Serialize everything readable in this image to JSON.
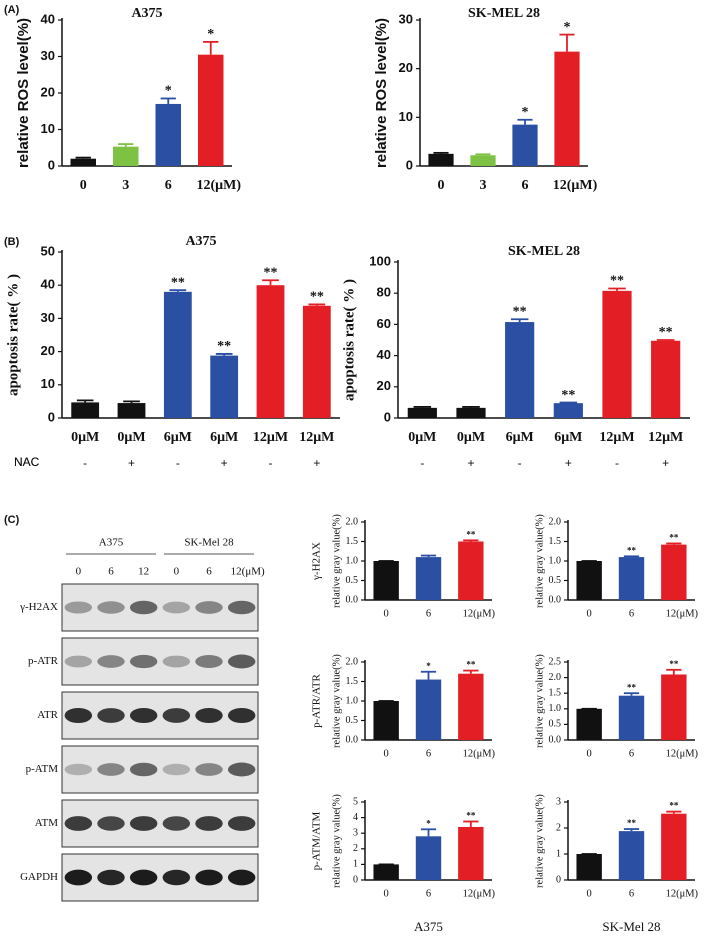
{
  "chart_data": [
    {
      "type": "bar",
      "panel": "(A)",
      "title": "A375",
      "ylabel": "relative ROS level(%)",
      "categories": [
        "0",
        "3",
        "6",
        "12(μM)"
      ],
      "values": [
        2,
        5.3,
        17,
        30.5
      ],
      "errors": [
        0.3,
        0.7,
        1.5,
        3.5
      ],
      "annotations": [
        null,
        null,
        "*",
        "*"
      ],
      "colors": [
        "#111111",
        "#7dc242",
        "#2a4fa3",
        "#e31e24"
      ],
      "ylim": [
        0,
        40
      ],
      "yticks": [
        0,
        10,
        20,
        30,
        40
      ]
    },
    {
      "type": "bar",
      "title": "SK-MEL 28",
      "ylabel": "relative ROS level(%)",
      "categories": [
        "0",
        "3",
        "6",
        "12(μM)"
      ],
      "values": [
        2.5,
        2.2,
        8.5,
        23.5
      ],
      "errors": [
        0.2,
        0.2,
        1.0,
        3.5
      ],
      "annotations": [
        null,
        null,
        "*",
        "*"
      ],
      "colors": [
        "#111111",
        "#7dc242",
        "#2a4fa3",
        "#e31e24"
      ],
      "ylim": [
        0,
        30
      ],
      "yticks": [
        0,
        10,
        20,
        30
      ]
    },
    {
      "type": "bar",
      "panel": "(B)",
      "title": "A375",
      "ylabel": "apoptosis rate( % )",
      "categories": [
        "0μM",
        "0μM",
        "6μM",
        "6μM",
        "12μM",
        "12μM"
      ],
      "values": [
        4.7,
        4.5,
        38,
        18.8,
        40,
        33.8
      ],
      "errors": [
        0.6,
        0.5,
        0.5,
        0.5,
        1.5,
        0.4
      ],
      "nac": {
        "label": "NAC",
        "values": [
          "-",
          "+",
          "-",
          "+",
          "-",
          "+"
        ]
      },
      "annotations": [
        null,
        null,
        "**",
        "**",
        "**",
        "**"
      ],
      "colors": [
        "#111111",
        "#111111",
        "#2a4fa3",
        "#2a4fa3",
        "#e31e24",
        "#e31e24"
      ],
      "ylim": [
        0,
        50
      ],
      "yticks": [
        0,
        10,
        20,
        30,
        40,
        50
      ]
    },
    {
      "type": "bar",
      "title": "SK-MEL 28",
      "ylabel": "apoptosis rate( % )",
      "categories": [
        "0μM",
        "0μM",
        "6μM",
        "6μM",
        "12μM",
        "12μM"
      ],
      "values": [
        6.5,
        6.5,
        61.5,
        9.5,
        81.5,
        49.5
      ],
      "errors": [
        0.6,
        0.6,
        1.8,
        0.4,
        1.5,
        0.5
      ],
      "nac": {
        "label": "NAC",
        "values": [
          "-",
          "+",
          "-",
          "+",
          "-",
          "+"
        ]
      },
      "annotations": [
        null,
        null,
        "**",
        "**",
        "**",
        "**"
      ],
      "colors": [
        "#111111",
        "#111111",
        "#2a4fa3",
        "#2a4fa3",
        "#e31e24",
        "#e31e24"
      ],
      "ylim": [
        0,
        100
      ],
      "yticks": [
        0,
        20,
        40,
        60,
        80,
        100
      ]
    },
    {
      "type": "bar",
      "side_label": "γ-H2AX",
      "ylabel": "relative gray value(%)",
      "categories": [
        "0",
        "6",
        "12(μM)"
      ],
      "values": [
        1,
        1.1,
        1.5
      ],
      "errors": [
        0,
        0.04,
        0.03
      ],
      "annotations": [
        null,
        null,
        "**"
      ],
      "colors": [
        "#111111",
        "#2a4fa3",
        "#e31e24"
      ],
      "ylim": [
        0,
        2
      ],
      "yticks": [
        {
          "value": 0,
          "label": "0.0"
        },
        0.5,
        {
          "value": 1,
          "label": "1.0"
        },
        1.5,
        {
          "value": 2,
          "label": "2.0"
        }
      ]
    },
    {
      "type": "bar",
      "ylabel": "relative gray value(%)",
      "categories": [
        "0",
        "6",
        "12(μM)"
      ],
      "values": [
        1,
        1.1,
        1.42
      ],
      "errors": [
        0,
        0.02,
        0.03
      ],
      "annotations": [
        null,
        "**",
        "**"
      ],
      "colors": [
        "#111111",
        "#2a4fa3",
        "#e31e24"
      ],
      "ylim": [
        0,
        2
      ],
      "yticks": [
        {
          "value": 0,
          "label": "0.0"
        },
        0.5,
        {
          "value": 1,
          "label": "1.0"
        },
        1.5,
        {
          "value": 2,
          "label": "2.0"
        }
      ]
    },
    {
      "type": "bar",
      "side_label": "p-ATR/ATR",
      "ylabel": "relative gray value(%)",
      "categories": [
        "0",
        "6",
        "12(μM)"
      ],
      "values": [
        1,
        1.55,
        1.7
      ],
      "errors": [
        0,
        0.2,
        0.08
      ],
      "annotations": [
        null,
        "*",
        "**"
      ],
      "colors": [
        "#111111",
        "#2a4fa3",
        "#e31e24"
      ],
      "ylim": [
        0,
        2
      ],
      "yticks": [
        {
          "value": 0,
          "label": "0.0"
        },
        0.5,
        {
          "value": 1,
          "label": "1.0"
        },
        1.5,
        {
          "value": 2,
          "label": "2.0"
        }
      ]
    },
    {
      "type": "bar",
      "ylabel": "relative gray value(%)",
      "categories": [
        "0",
        "6",
        "12(μM)"
      ],
      "values": [
        1,
        1.42,
        2.1
      ],
      "errors": [
        0,
        0.08,
        0.15
      ],
      "annotations": [
        null,
        "**",
        "**"
      ],
      "colors": [
        "#111111",
        "#2a4fa3",
        "#e31e24"
      ],
      "ylim": [
        0,
        2.5
      ],
      "yticks": [
        {
          "value": 0,
          "label": "0.0"
        },
        0.5,
        {
          "value": 1,
          "label": "1.0"
        },
        1.5,
        {
          "value": 2,
          "label": "2.0"
        },
        2.5
      ]
    },
    {
      "type": "bar",
      "side_label": "p-ATM/ATM",
      "ylabel": "relative gray value(%)",
      "xlabel": "A375",
      "categories": [
        "0",
        "6",
        "12(μM)"
      ],
      "values": [
        1,
        2.8,
        3.4
      ],
      "errors": [
        0,
        0.45,
        0.35
      ],
      "annotations": [
        null,
        "*",
        "**"
      ],
      "colors": [
        "#111111",
        "#2a4fa3",
        "#e31e24"
      ],
      "ylim": [
        0,
        5
      ],
      "yticks": [
        0,
        1,
        2,
        3,
        4,
        5
      ]
    },
    {
      "type": "bar",
      "ylabel": "relative gray value(%)",
      "xlabel": "SK-Mel 28",
      "categories": [
        "0",
        "6",
        "12(μM)"
      ],
      "values": [
        1,
        1.88,
        2.55
      ],
      "errors": [
        0,
        0.08,
        0.08
      ],
      "annotations": [
        null,
        "**",
        "**"
      ],
      "colors": [
        "#111111",
        "#2a4fa3",
        "#e31e24"
      ],
      "ylim": [
        0,
        3
      ],
      "yticks": [
        0,
        1,
        2,
        3
      ]
    }
  ],
  "blot": {
    "panel": "(C)",
    "groups": [
      "A375",
      "SK-Mel 28"
    ],
    "lanes": [
      "0",
      "6",
      "12",
      "0",
      "6",
      "12(μM)"
    ],
    "rows": [
      "γ-H2AX",
      "p-ATR",
      "ATR",
      "p-ATM",
      "ATM",
      "GAPDH"
    ]
  }
}
